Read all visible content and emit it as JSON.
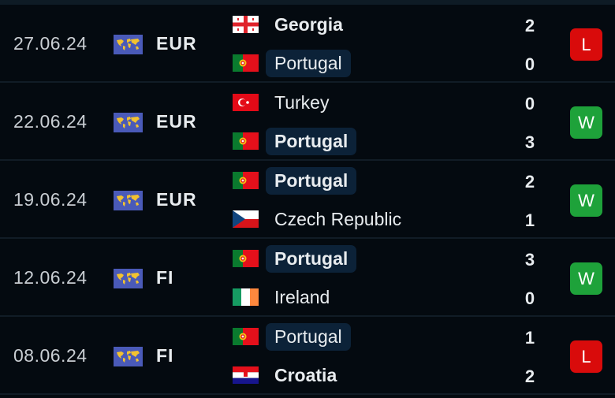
{
  "colors": {
    "win": "#1ea23a",
    "loss": "#d90b0b",
    "highlight": "#0c2238",
    "competition_flag": "#4a5ab8"
  },
  "matches": [
    {
      "date": "27.06.24",
      "competition": "EUR",
      "competition_icon": "world-map-icon",
      "home": {
        "name": "Georgia",
        "flag": "georgia",
        "score": "2",
        "winner": true,
        "highlight": false
      },
      "away": {
        "name": "Portugal",
        "flag": "portugal",
        "score": "0",
        "winner": false,
        "highlight": true
      },
      "result": "L"
    },
    {
      "date": "22.06.24",
      "competition": "EUR",
      "competition_icon": "world-map-icon",
      "home": {
        "name": "Turkey",
        "flag": "turkey",
        "score": "0",
        "winner": false,
        "highlight": false
      },
      "away": {
        "name": "Portugal",
        "flag": "portugal",
        "score": "3",
        "winner": true,
        "highlight": true
      },
      "result": "W"
    },
    {
      "date": "19.06.24",
      "competition": "EUR",
      "competition_icon": "world-map-icon",
      "home": {
        "name": "Portugal",
        "flag": "portugal",
        "score": "2",
        "winner": true,
        "highlight": true
      },
      "away": {
        "name": "Czech Republic",
        "flag": "czech",
        "score": "1",
        "winner": false,
        "highlight": false
      },
      "result": "W"
    },
    {
      "date": "12.06.24",
      "competition": "FI",
      "competition_icon": "world-map-icon",
      "home": {
        "name": "Portugal",
        "flag": "portugal",
        "score": "3",
        "winner": true,
        "highlight": true
      },
      "away": {
        "name": "Ireland",
        "flag": "ireland",
        "score": "0",
        "winner": false,
        "highlight": false
      },
      "result": "W"
    },
    {
      "date": "08.06.24",
      "competition": "FI",
      "competition_icon": "world-map-icon",
      "home": {
        "name": "Portugal",
        "flag": "portugal",
        "score": "1",
        "winner": false,
        "highlight": true
      },
      "away": {
        "name": "Croatia",
        "flag": "croatia",
        "score": "2",
        "winner": true,
        "highlight": false
      },
      "result": "L"
    }
  ]
}
